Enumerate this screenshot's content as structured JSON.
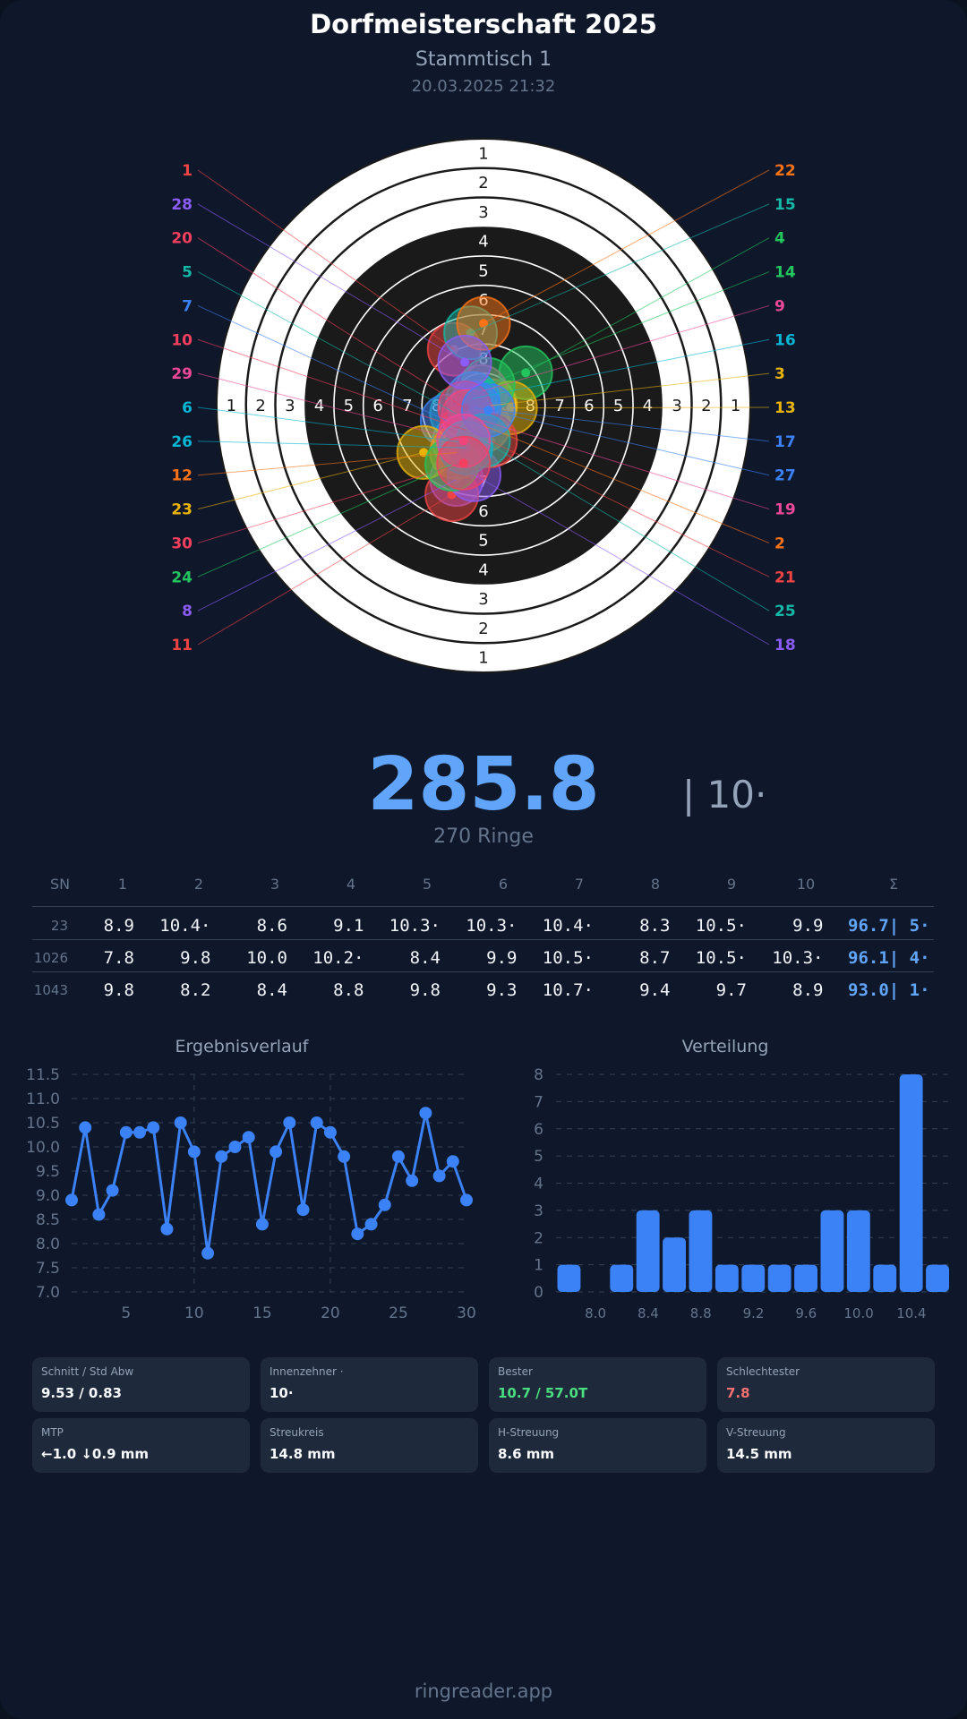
{
  "header": {
    "title": "Dorfmeisterschaft 2025",
    "subtitle": "Stammtisch 1",
    "datetime": "20.03.2025 21:32"
  },
  "target": {
    "ring_labels": [
      "1",
      "2",
      "3",
      "4",
      "5",
      "6",
      "7",
      "8"
    ],
    "shot_colors": [
      "#ef4444",
      "#f97316",
      "#eab308",
      "#22c55e",
      "#14b8a6",
      "#06b6d4",
      "#3b82f6",
      "#8b5cf6",
      "#ec4899",
      "#f43f5e"
    ],
    "shots_mm": [
      {
        "n": "1",
        "x": -2.5,
        "y": 4.8
      },
      {
        "n": "2",
        "x": 0.0,
        "y": -1.7
      },
      {
        "n": "3",
        "x": 0.6,
        "y": 0.0
      },
      {
        "n": "4",
        "x": 3.6,
        "y": 2.8
      },
      {
        "n": "5",
        "x": -2.3,
        "y": -0.7
      },
      {
        "n": "6",
        "x": -2.1,
        "y": -3.1
      },
      {
        "n": "7",
        "x": -3.1,
        "y": -1.3
      },
      {
        "n": "8",
        "x": -2.3,
        "y": -6.3
      },
      {
        "n": "9",
        "x": -0.2,
        "y": 1.2
      },
      {
        "n": "10",
        "x": -1.5,
        "y": -2.1
      },
      {
        "n": "11",
        "x": -2.7,
        "y": -7.6
      },
      {
        "n": "12",
        "x": -2.3,
        "y": -4.0
      },
      {
        "n": "13",
        "x": 2.3,
        "y": -0.2
      },
      {
        "n": "14",
        "x": 0.4,
        "y": 1.8
      },
      {
        "n": "15",
        "x": -1.1,
        "y": 6.2
      },
      {
        "n": "16",
        "x": -0.9,
        "y": 0.6
      },
      {
        "n": "17",
        "x": -0.8,
        "y": -0.2
      },
      {
        "n": "18",
        "x": -0.8,
        "y": -5.9
      },
      {
        "n": "19",
        "x": -1.3,
        "y": -0.9
      },
      {
        "n": "20",
        "x": -1.6,
        "y": -0.2
      },
      {
        "n": "21",
        "x": 0.6,
        "y": -3.0
      },
      {
        "n": "22",
        "x": 0.0,
        "y": 7.0
      },
      {
        "n": "23",
        "x": -5.1,
        "y": -4.0
      },
      {
        "n": "24",
        "x": -2.7,
        "y": -5.0
      },
      {
        "n": "25",
        "x": 0.0,
        "y": -3.0
      },
      {
        "n": "26",
        "x": -1.5,
        "y": -3.6
      },
      {
        "n": "27",
        "x": 0.4,
        "y": -0.4
      },
      {
        "n": "28",
        "x": -1.6,
        "y": 3.7
      },
      {
        "n": "29",
        "x": -1.7,
        "y": -3.0
      },
      {
        "n": "30",
        "x": -1.7,
        "y": -4.9
      }
    ]
  },
  "score": {
    "total": "285.8",
    "tens": "| 10·",
    "rings": "270 Ringe"
  },
  "table": {
    "headers": [
      "SN",
      "1",
      "2",
      "3",
      "4",
      "5",
      "6",
      "7",
      "8",
      "9",
      "10",
      "Σ"
    ],
    "rows": [
      {
        "sn": "23",
        "values": [
          "8.9",
          "10.4·",
          "8.6",
          "9.1",
          "10.3·",
          "10.3·",
          "10.4·",
          "8.3",
          "10.5·",
          "9.9"
        ],
        "sum": "96.7| 5·"
      },
      {
        "sn": "1026",
        "values": [
          "7.8",
          "9.8",
          "10.0",
          "10.2·",
          "8.4",
          "9.9",
          "10.5·",
          "8.7",
          "10.5·",
          "10.3·"
        ],
        "sum": "96.1| 4·"
      },
      {
        "sn": "1043",
        "values": [
          "9.8",
          "8.2",
          "8.4",
          "8.8",
          "9.8",
          "9.3",
          "10.7·",
          "9.4",
          "9.7",
          "8.9"
        ],
        "sum": "93.0| 1·"
      }
    ]
  },
  "chart_data": [
    {
      "type": "line",
      "title": "Ergebnisverlauf",
      "x": [
        1,
        2,
        3,
        4,
        5,
        6,
        7,
        8,
        9,
        10,
        11,
        12,
        13,
        14,
        15,
        16,
        17,
        18,
        19,
        20,
        21,
        22,
        23,
        24,
        25,
        26,
        27,
        28,
        29,
        30
      ],
      "values": [
        8.9,
        10.4,
        8.6,
        9.1,
        10.3,
        10.3,
        10.4,
        8.3,
        10.5,
        9.9,
        7.8,
        9.8,
        10.0,
        10.2,
        8.4,
        9.9,
        10.5,
        8.7,
        10.5,
        10.3,
        9.8,
        8.2,
        8.4,
        8.8,
        9.8,
        9.3,
        10.7,
        9.4,
        9.7,
        8.9
      ],
      "ylim": [
        7.0,
        11.5
      ],
      "yticks": [
        "7.0",
        "7.5",
        "8.0",
        "8.5",
        "9.0",
        "9.5",
        "10.0",
        "10.5",
        "11.0",
        "11.5"
      ],
      "xticks": [
        "5",
        "10",
        "15",
        "20",
        "25",
        "30"
      ],
      "color": "#3b82f6",
      "grid": true
    },
    {
      "type": "bar",
      "title": "Verteilung",
      "categories": [
        "7.8",
        "8.0",
        "8.2",
        "8.4",
        "8.6",
        "8.8",
        "9.0",
        "9.2",
        "9.4",
        "9.6",
        "9.8",
        "10.0",
        "10.2",
        "10.4",
        "10.6"
      ],
      "values": [
        1,
        0,
        1,
        3,
        2,
        3,
        1,
        1,
        1,
        1,
        3,
        3,
        1,
        8,
        1
      ],
      "ylim": [
        0,
        8
      ],
      "yticks": [
        "0",
        "1",
        "2",
        "3",
        "4",
        "5",
        "6",
        "7",
        "8"
      ],
      "xticks": [
        "8.0",
        "8.4",
        "8.8",
        "9.2",
        "9.6",
        "10.0",
        "10.4"
      ],
      "color": "#3b82f6",
      "grid": true
    }
  ],
  "stats": [
    {
      "label": "Schnitt / Std Abw",
      "value": "9.53 / 0.83",
      "color": "#f8fafc"
    },
    {
      "label": "Innenzehner ·",
      "value": "10·",
      "color": "#f8fafc"
    },
    {
      "label": "Bester",
      "value": "10.7 / 57.0T",
      "color": "#4ade80"
    },
    {
      "label": "Schlechtester",
      "value": "7.8",
      "color": "#f87171"
    },
    {
      "label": "MTP",
      "value": "←1.0 ↓0.9 mm",
      "color": "#f8fafc"
    },
    {
      "label": "Streukreis",
      "value": "14.8 mm",
      "color": "#f8fafc"
    },
    {
      "label": "H-Streuung",
      "value": "8.6 mm",
      "color": "#f8fafc"
    },
    {
      "label": "V-Streuung",
      "value": "14.5 mm",
      "color": "#f8fafc"
    }
  ],
  "footer": "ringreader.app"
}
